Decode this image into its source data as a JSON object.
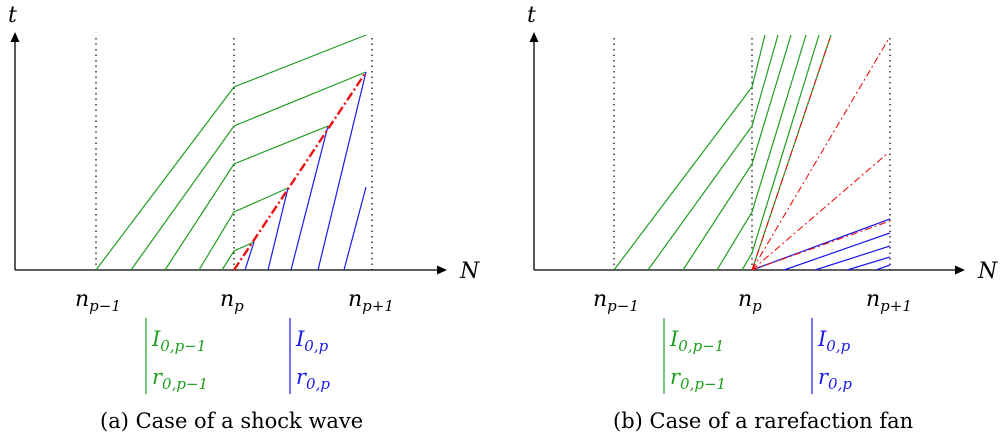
{
  "panels": [
    {
      "caption": "(a) Case of a shock wave",
      "t_label": "t",
      "N_label": "N",
      "ticks": [
        {
          "main": "n",
          "sub": "p−1"
        },
        {
          "main": "n",
          "sub": "p"
        },
        {
          "main": "n",
          "sub": "p+1"
        }
      ],
      "legend_left": [
        {
          "main": "I",
          "sub": "0,p−1"
        },
        {
          "main": "r",
          "sub": "0,p−1"
        }
      ],
      "legend_right": [
        {
          "main": "I",
          "sub": "0,p"
        },
        {
          "main": "r",
          "sub": "0,p"
        }
      ]
    },
    {
      "caption": "(b) Case of a rarefaction fan",
      "t_label": "t",
      "N_label": "N",
      "ticks": [
        {
          "main": "n",
          "sub": "p−1"
        },
        {
          "main": "n",
          "sub": "p"
        },
        {
          "main": "n",
          "sub": "p+1"
        }
      ],
      "legend_left": [
        {
          "main": "I",
          "sub": "0,p−1"
        },
        {
          "main": "r",
          "sub": "0,p−1"
        }
      ],
      "legend_right": [
        {
          "main": "I",
          "sub": "0,p"
        },
        {
          "main": "r",
          "sub": "0,p"
        }
      ]
    }
  ],
  "colors": {
    "left_state": "#1f9e1f",
    "right_state": "#1a1aee",
    "wave": "#ee1111"
  }
}
